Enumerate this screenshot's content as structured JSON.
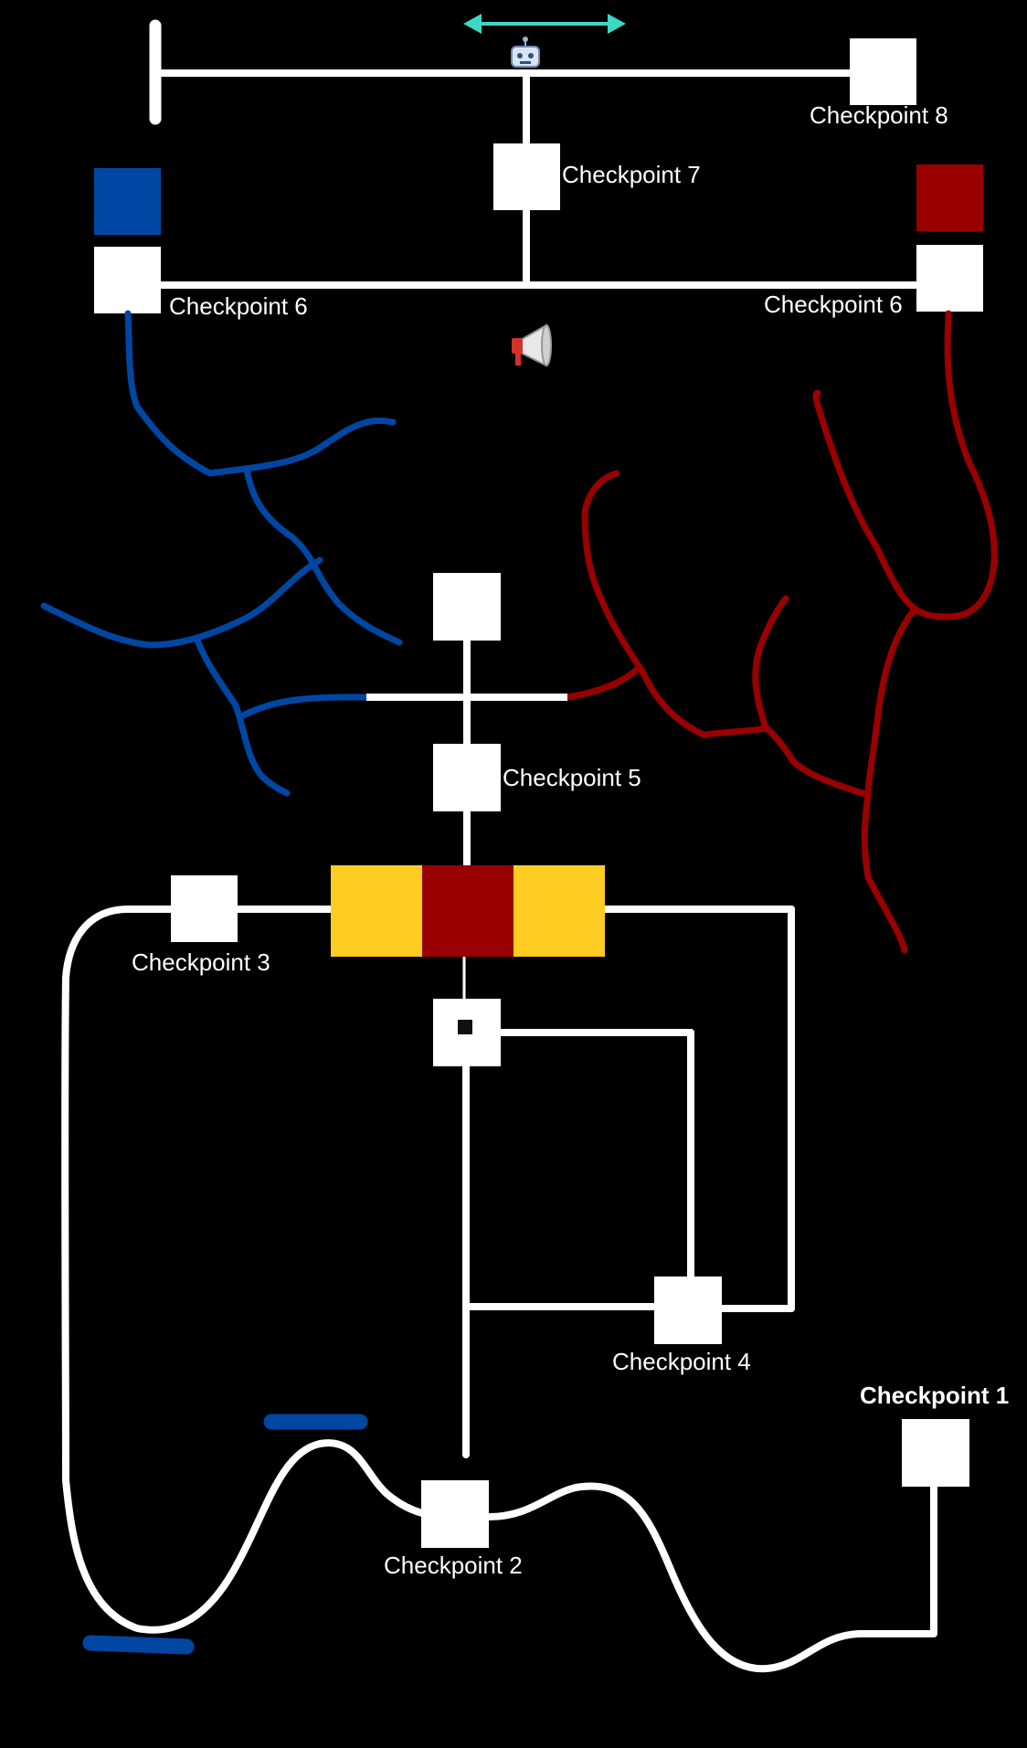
{
  "labels": {
    "cp1": "Checkpoint 1",
    "cp2": "Checkpoint 2",
    "cp3": "Checkpoint 3",
    "cp4": "Checkpoint 4",
    "cp5": "Checkpoint 5",
    "cp6_left": "Checkpoint 6",
    "cp6_right": "Checkpoint 6",
    "cp7": "Checkpoint 7",
    "cp8": "Checkpoint 8"
  },
  "icons": {
    "robot": "robot-icon",
    "megaphone": "megaphone-icon",
    "double_arrow": "double-arrow-icon"
  },
  "colors": {
    "background": "#000000",
    "track": "#ffffff",
    "blue": "#0047a3",
    "red": "#990000",
    "yellow": "#ffcc22",
    "arrow": "#3dd8c4"
  }
}
